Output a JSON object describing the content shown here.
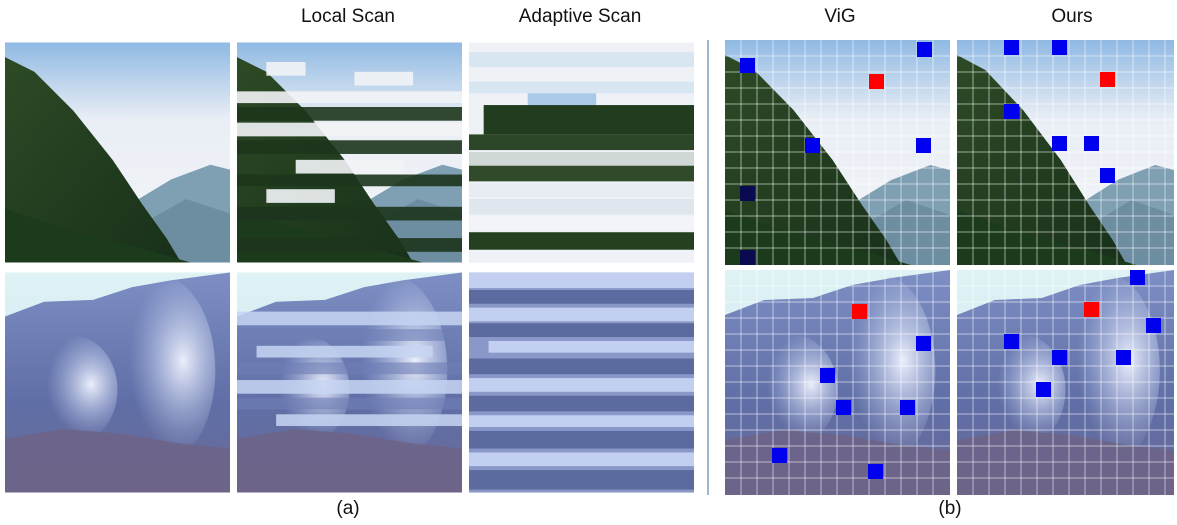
{
  "headers": {
    "local_scan": "Local Scan",
    "adaptive_scan": "Adaptive Scan",
    "vig": "ViG",
    "ours": "Ours"
  },
  "sublabels": {
    "a": "(a)",
    "b": "(b)"
  },
  "colors": {
    "query_patch": "#ff0000",
    "neighbor_patch": "#0000ee",
    "divider": "#9fb6cf"
  }
}
